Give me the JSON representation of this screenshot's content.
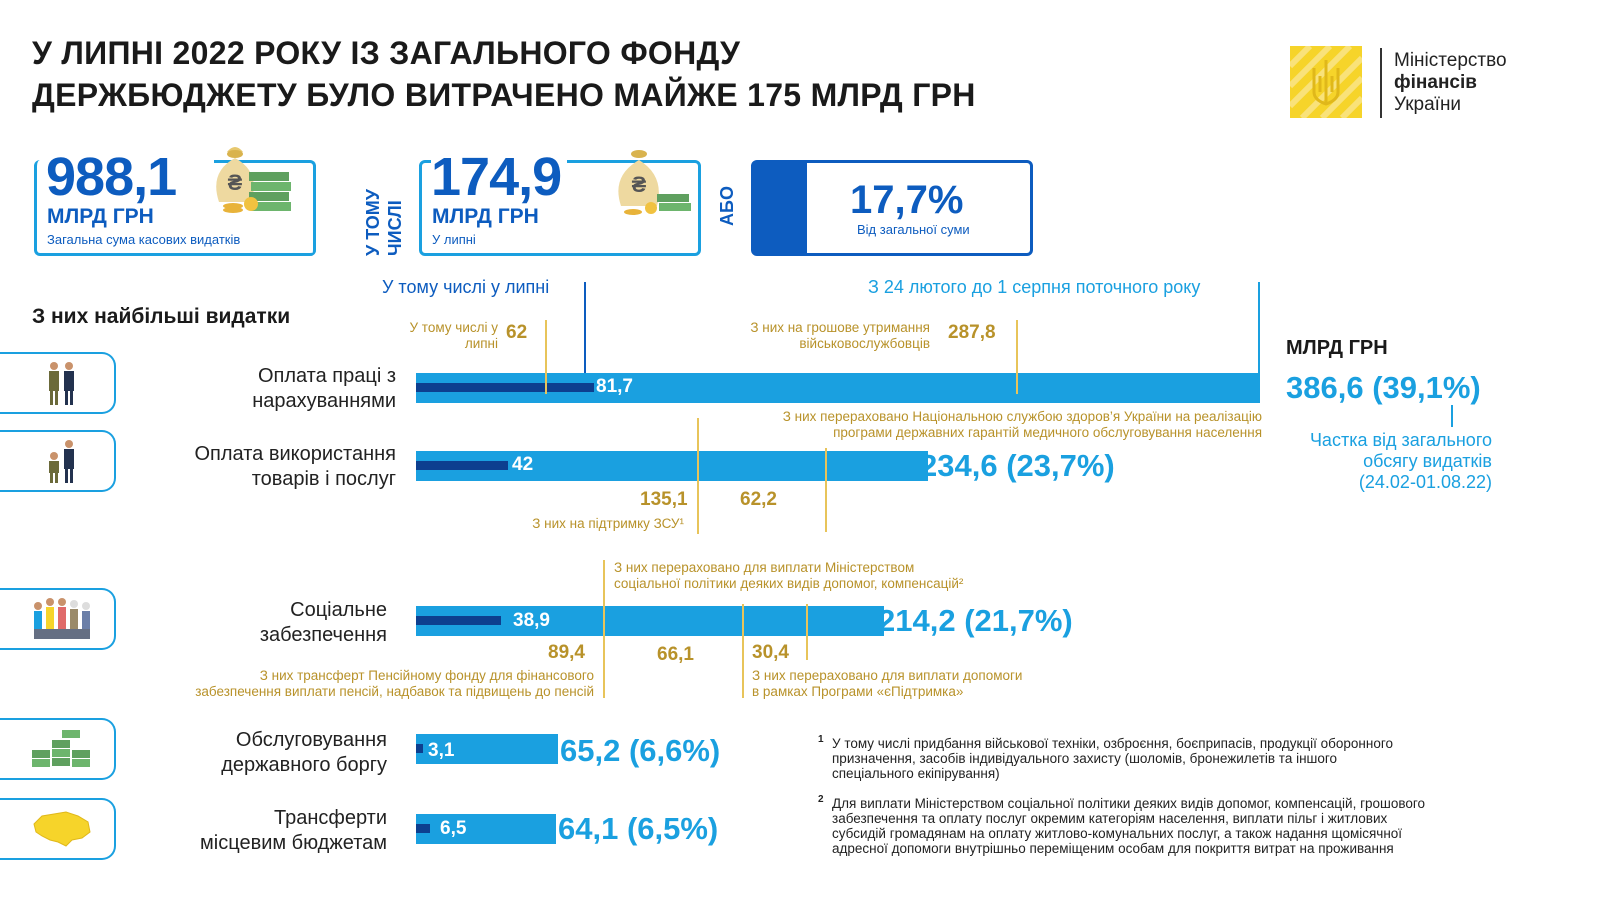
{
  "title_line1": "У ЛИПНІ  2022 РОКУ ІЗ ЗАГАЛЬНОГО ФОНДУ",
  "title_line2": "ДЕРЖБЮДЖЕТУ БУЛО ВИТРАЧЕНО МАЙЖЕ 175 МЛРД ГРН",
  "logo": {
    "line1": "Міністерство",
    "line2": "фінансів",
    "line3": "України"
  },
  "kpi": {
    "total_value": "988,1",
    "total_unit": "МЛРД ГРН",
    "total_caption": "Загальна сума касових видатків",
    "incl_label_1": "У ТОМУ",
    "incl_label_2": "ЧИСЛІ",
    "july_value": "174,9",
    "july_unit": "МЛРД ГРН",
    "july_caption": "У липні",
    "or_label": "АБО",
    "share_value": "17,7%",
    "share_caption": "Від загальної суми"
  },
  "legend": {
    "july": "У тому числі у липні",
    "period": "З 24 лютого до 1 серпня поточного року",
    "unit": "МЛРД ГРН",
    "share_caption_1": "Частка від загального",
    "share_caption_2": "обсягу видатків",
    "share_caption_3": "(24.02-01.08.22)"
  },
  "section_title": "З них найбільші видатки",
  "chart_data": {
    "type": "bar",
    "orientation": "horizontal",
    "categories": [
      "Оплата праці з нарахуваннями",
      "Оплата використання товарів і послуг",
      "Соціальне забезпечення",
      "Обслуговування державного боргу",
      "Трансферти місцевим бюджетам"
    ],
    "series": [
      {
        "name": "З 24 лютого до 1 серпня поточного року",
        "values": [
          386.6,
          234.6,
          214.2,
          65.2,
          64.1
        ]
      },
      {
        "name": "У тому числі у липні",
        "values": [
          81.7,
          42,
          38.9,
          3.1,
          6.5
        ]
      }
    ],
    "shares_pct": [
      39.1,
      23.7,
      21.7,
      6.6,
      6.5
    ],
    "unit": "МЛРД ГРН",
    "xlim": [
      0,
      386.6
    ]
  },
  "rows": [
    {
      "label1": "Оплата праці з",
      "label2": "нарахуваннями",
      "july": "81,7",
      "total": "386,6 (39,1%)"
    },
    {
      "label1": "Оплата використання",
      "label2": "товарів і послуг",
      "july": "42",
      "total": "234,6 (23,7%)"
    },
    {
      "label1": "Соціальне",
      "label2": "забезпечення",
      "july": "38,9",
      "total": "214,2 (21,7%)"
    },
    {
      "label1": "Обслуговування",
      "label2": "державного боргу",
      "july": "3,1",
      "total": "65,2 (6,6%)"
    },
    {
      "label1": "Трансферти",
      "label2": "місцевим бюджетам",
      "july": "6,5",
      "total": "64,1 (6,5%)"
    }
  ],
  "notes": {
    "r1_july_text_1": "У тому числі у",
    "r1_july_text_2": "липні",
    "r1_july_value": "62",
    "r1_mil_text_1": "З них на грошове утримання",
    "r1_mil_text_2": "військовослужбовців",
    "r1_mil_value": "287,8",
    "r2_nszu_text_1": "З них перераховано Національною службою здоров’я України на реалізацію",
    "r2_nszu_text_2": "програми державних гарантій медичного обслуговування населення",
    "r2_zsu_value": "135,1",
    "r2_zsu_text": "З них на підтримку ЗСУ¹",
    "r2_nszu_value": "62,2",
    "r3_msp_text_1": "З них перераховано для виплати Міністерством",
    "r3_msp_text_2": "соціальної політики деяких видів допомог, компенсацій²",
    "r3_pf_value": "89,4",
    "r3_msp_value": "66,1",
    "r3_ep_value": "30,4",
    "r3_pf_text_1": "З них трансферт Пенсійному фонду для фінансового",
    "r3_pf_text_2": "забезпечення виплати пенсій, надбавок та підвищень до пенсій",
    "r3_ep_text_1": "З них перераховано для виплати допомоги",
    "r3_ep_text_2": "в рамках Програми «єПідтримка»"
  },
  "footnotes": {
    "f1_mark": "1",
    "f1_1": "У тому числі придбання військової техніки, озброєння, боєприпасів, продукції оборонного",
    "f1_2": "призначення, засобів індивідуального захисту (шоломів, бронежилетів та іншого",
    "f1_3": "спеціального екіпірування)",
    "f2_mark": "2",
    "f2_1": "Для виплати Міністерством соціальної політики деяких видів допомог, компенсацій, грошового",
    "f2_2": "забезпечення та оплату послуг окремим категоріям населення, виплати пільг і житлових",
    "f2_3": "субсидій громадянам на оплату житлово-комунальних послуг, а також надання щомісячної",
    "f2_4": "адресної допомоги внутрішньо переміщеним особам для покриття витрат на проживання"
  },
  "colors": {
    "bar": "#1aa0e0",
    "bar_july": "#0d3f8f",
    "accent_blue": "#0d5cbf",
    "gold": "#b8922a",
    "logo_yellow": "#f6d42a"
  }
}
